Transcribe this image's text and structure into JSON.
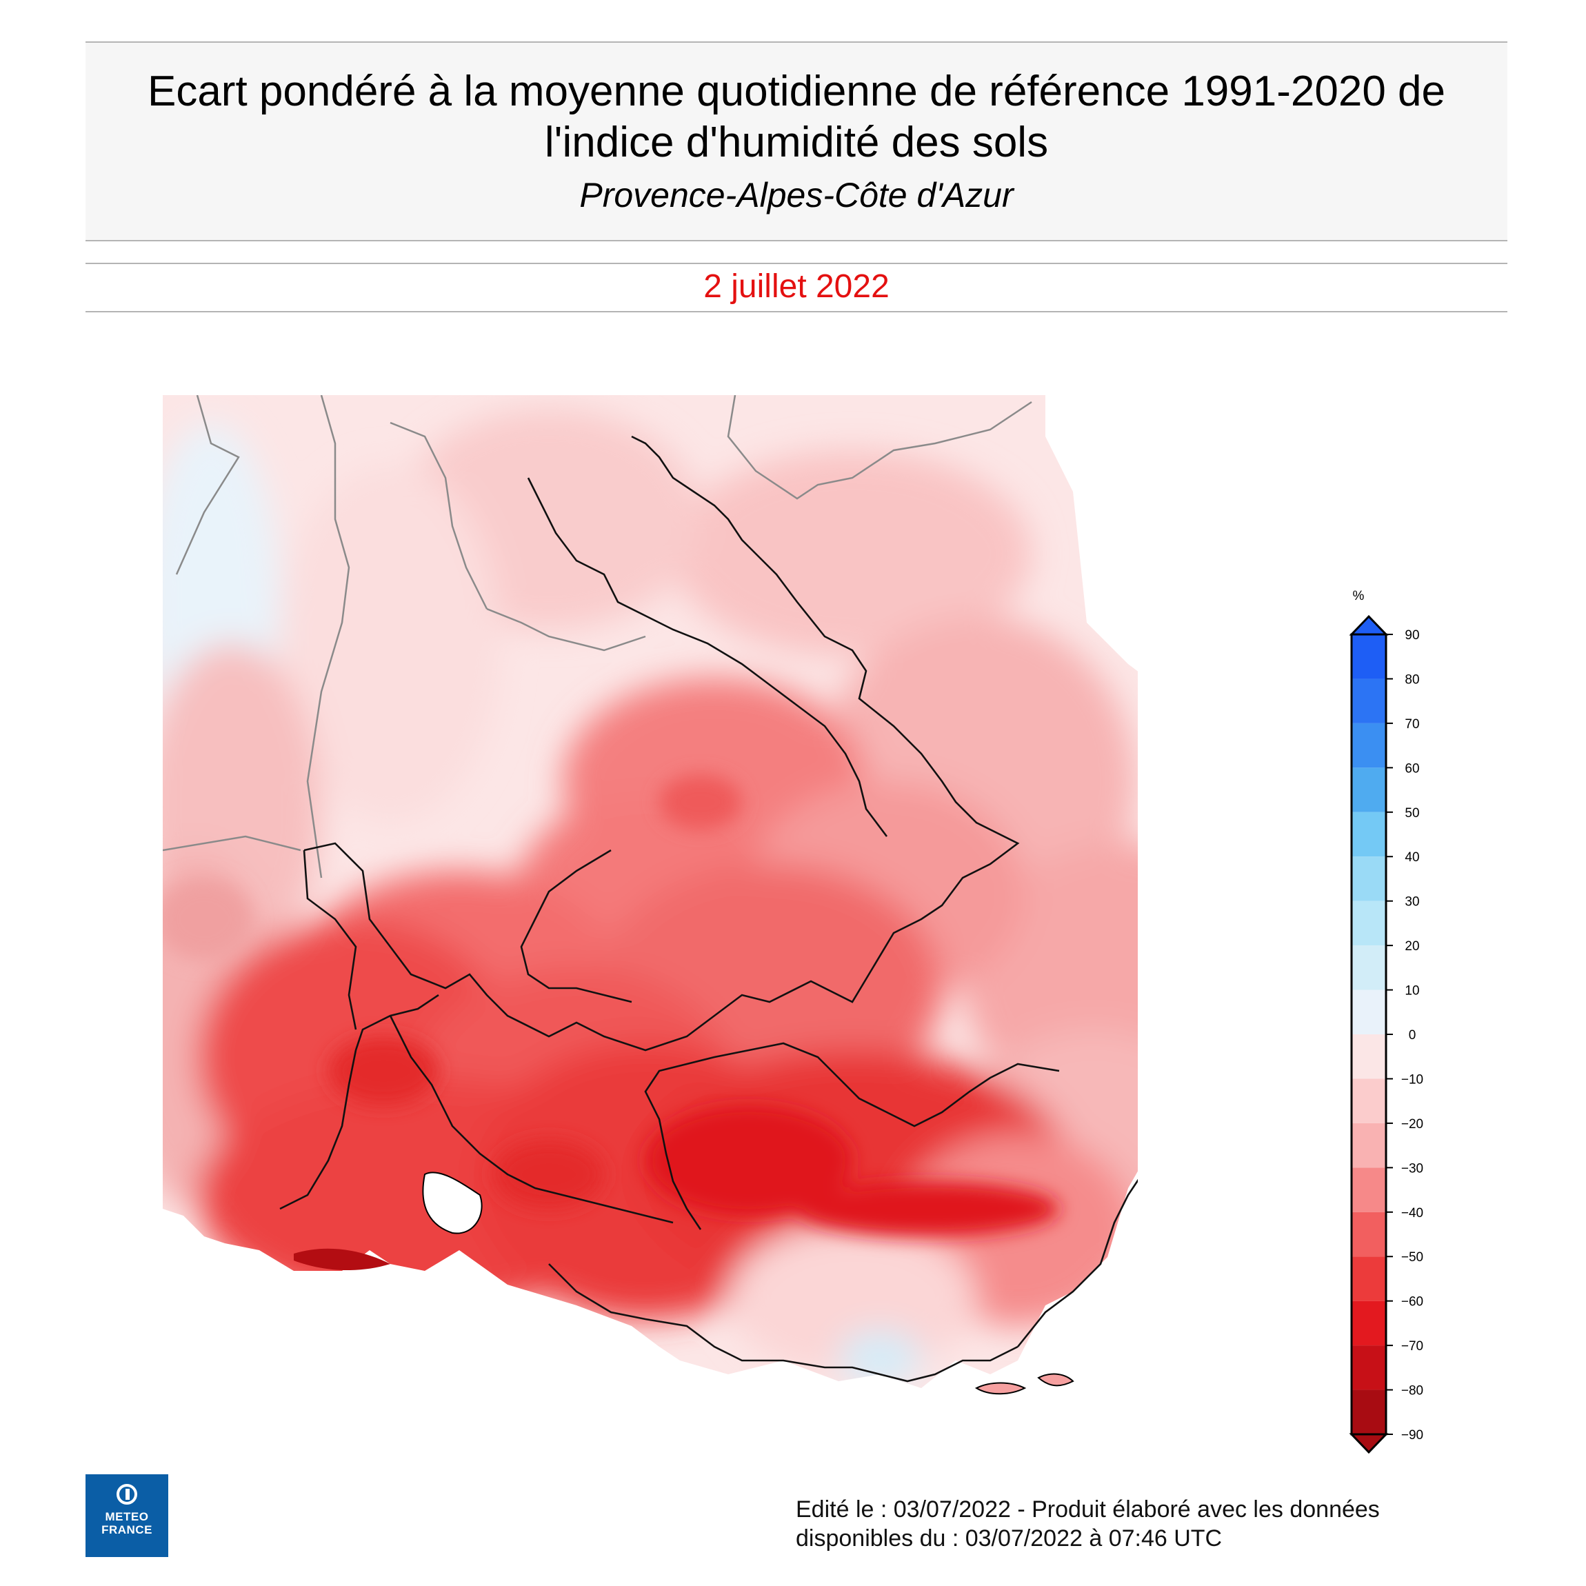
{
  "header": {
    "title_line1": "Ecart pondéré à la moyenne quotidienne de référence 1991-2020 de",
    "title_line2": "l'indice d'humidité des sols",
    "subtitle": "Provence-Alpes-Côte d'Azur"
  },
  "date": "2 juillet 2022",
  "legend": {
    "unit": "%",
    "ticks": [
      "90",
      "80",
      "70",
      "60",
      "50",
      "40",
      "30",
      "20",
      "10",
      "0",
      "−10",
      "−20",
      "−30",
      "−40",
      "−50",
      "−60",
      "−70",
      "−80",
      "−90"
    ],
    "colors": [
      "#1e5ef5",
      "#2c74f4",
      "#3b8ff2",
      "#4fabf0",
      "#74c9f5",
      "#9adaf6",
      "#b8e6f8",
      "#d2edf8",
      "#e9f2fa",
      "#fbe6e6",
      "#fbcccc",
      "#f9b2b2",
      "#f68989",
      "#f25f5f",
      "#ec3b3b",
      "#e3191f",
      "#c71017",
      "#a80c12"
    ]
  },
  "logo": {
    "line1": "METEO",
    "line2": "FRANCE",
    "icon": "meteo-france-logo-icon"
  },
  "footer": {
    "line1": "Edité le : 03/07/2022 - Produit élaboré avec les données",
    "line2": "disponibles du : 03/07/2022 à 07:46 UTC"
  }
}
